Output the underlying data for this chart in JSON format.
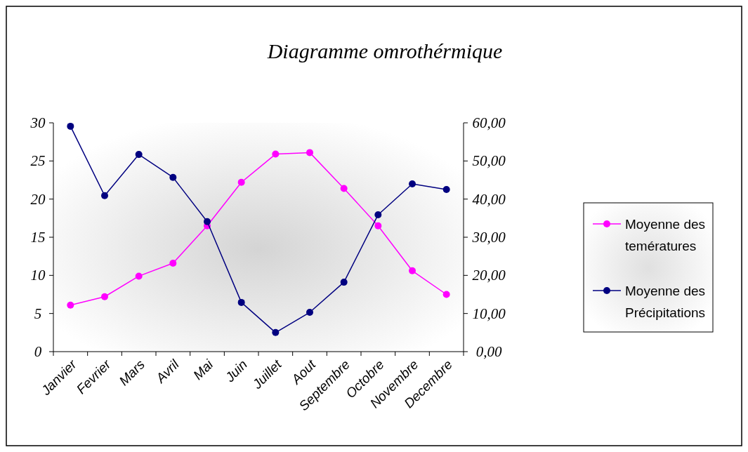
{
  "chart_data": {
    "type": "line",
    "title": "Diagramme omrothérmique",
    "categories": [
      "Janvier",
      "Fevrier",
      "Mars",
      "Avril",
      "Mai",
      "Juin",
      "Juillet",
      "Aout",
      "Septembre",
      "Octobre",
      "Novembre",
      "Decembre"
    ],
    "series": [
      {
        "name": "Moyenne des temératures",
        "color": "#ff00ff",
        "values": [
          6.1,
          7.2,
          9.9,
          11.6,
          16.5,
          22.2,
          25.9,
          26.1,
          21.4,
          16.5,
          10.6,
          7.5
        ]
      },
      {
        "name": "Moyenne des Précipitations",
        "color": "#000080",
        "axis": "y2",
        "values": [
          59.1,
          40.9,
          51.7,
          45.7,
          34.1,
          12.9,
          5.0,
          10.3,
          18.2,
          35.9,
          44.0,
          42.5
        ]
      }
    ],
    "ylim": [
      0,
      30
    ],
    "yticks": [
      0,
      5,
      10,
      15,
      20,
      25,
      30
    ],
    "y2lim": [
      0,
      60
    ],
    "y2ticks": [
      {
        "value": 0,
        "label": "0,00"
      },
      {
        "value": 10,
        "label": "10,00"
      },
      {
        "value": 20,
        "label": "20,00"
      },
      {
        "value": 30,
        "label": "30,00"
      },
      {
        "value": 40,
        "label": "40,00"
      },
      {
        "value": 50,
        "label": "50,00"
      },
      {
        "value": 60,
        "label": "60,00"
      }
    ],
    "grid": false,
    "legend": "right",
    "marker": "circle",
    "line_style": "solid"
  }
}
